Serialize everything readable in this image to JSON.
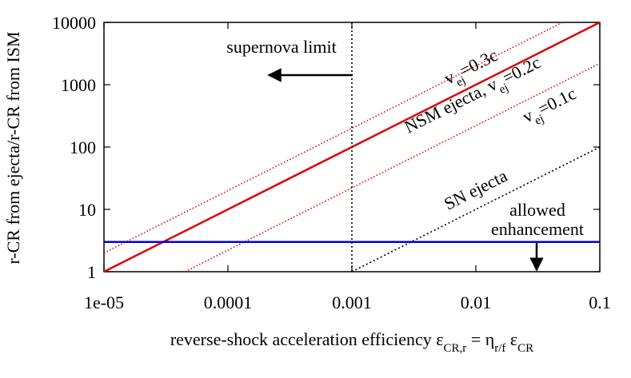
{
  "chart_data": {
    "type": "line",
    "xscale": "log",
    "yscale": "log",
    "xlim": [
      1e-05,
      0.1
    ],
    "ylim": [
      1,
      10000
    ],
    "xticks": [
      {
        "value": 1e-05,
        "label": "1e-05"
      },
      0.0001,
      0.001,
      0.01,
      0.1
    ],
    "yticks": [
      1,
      10,
      100,
      1000,
      10000
    ],
    "ylabel": "r-CR from ejecta/r-CR from ISM",
    "xlabel": [
      "reverse-shock acceleration efficiency  ",
      "ε",
      "CR,r",
      " = ",
      "η",
      "r/f",
      " ε",
      "CR"
    ],
    "series": [
      {
        "color": "#e00000",
        "style": "solid",
        "x": [
          1e-05,
          0.1
        ],
        "values": [
          1,
          10000
        ]
      },
      {
        "color": "#e00000",
        "style": "dotted",
        "x": [
          1e-05,
          0.05
        ],
        "values": [
          2,
          10000
        ]
      },
      {
        "color": "#e00000",
        "style": "dotted",
        "x": [
          4.5e-05,
          0.1
        ],
        "values": [
          1,
          2200
        ]
      },
      {
        "color": "#000000",
        "style": "dotted",
        "x": [
          0.001,
          0.1
        ],
        "values": [
          1,
          100
        ]
      },
      {
        "color": "#0000dd",
        "style": "solid",
        "x": [
          1e-05,
          0.1
        ],
        "values": [
          3,
          3
        ]
      },
      {
        "color": "#000000",
        "style": "dotted",
        "x": [
          0.001,
          0.001
        ],
        "values": [
          1,
          10000
        ]
      }
    ],
    "annotations": [
      {
        "text": [
          "supernova limit"
        ]
      },
      {
        "text": [
          "v",
          "ej",
          "=0.3c"
        ]
      },
      {
        "text": [
          "NSM ejecta, v",
          "ej",
          "=0.2c"
        ]
      },
      {
        "text": [
          "v",
          "ej",
          "=0.1c"
        ]
      },
      {
        "text": [
          "SN ejecta"
        ]
      },
      {
        "text": [
          "allowed"
        ]
      },
      {
        "text": [
          "enhancement"
        ]
      }
    ]
  }
}
